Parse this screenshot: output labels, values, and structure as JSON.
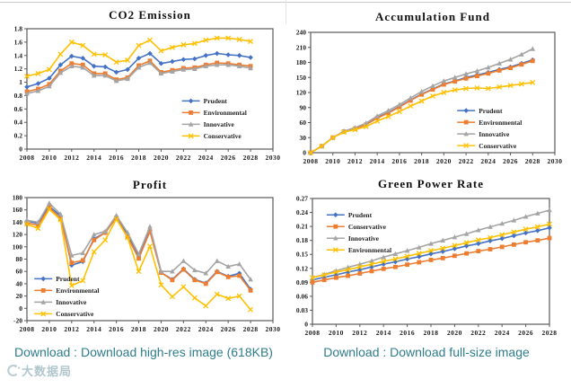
{
  "page": {
    "background": "#ffffff"
  },
  "chart_data": [
    {
      "type": "line",
      "title": "CO2 Emission",
      "x": [
        2008,
        2009,
        2010,
        2011,
        2012,
        2013,
        2014,
        2015,
        2016,
        2017,
        2018,
        2019,
        2020,
        2021,
        2022,
        2023,
        2024,
        2025,
        2026,
        2027,
        2028
      ],
      "x_axis_end": 2030,
      "x_tick_step": 2,
      "ylim": [
        0,
        1.8
      ],
      "ytick_step": 0.2,
      "grid": false,
      "legend_pos": {
        "x": 0.63,
        "y": 0.6
      },
      "series": [
        {
          "name": "Prudent",
          "color": "#4472C4",
          "marker": "diamond",
          "values": [
            0.93,
            0.98,
            1.06,
            1.26,
            1.39,
            1.36,
            1.24,
            1.23,
            1.15,
            1.19,
            1.36,
            1.43,
            1.28,
            1.31,
            1.34,
            1.35,
            1.4,
            1.43,
            1.41,
            1.4,
            1.37
          ]
        },
        {
          "name": "Environmental",
          "color": "#ED7D31",
          "marker": "square",
          "values": [
            0.86,
            0.9,
            0.97,
            1.17,
            1.28,
            1.26,
            1.13,
            1.13,
            1.04,
            1.07,
            1.25,
            1.32,
            1.15,
            1.18,
            1.21,
            1.22,
            1.26,
            1.29,
            1.28,
            1.26,
            1.24
          ]
        },
        {
          "name": "Innovative",
          "color": "#A5A5A5",
          "marker": "triangle",
          "values": [
            0.83,
            0.87,
            0.94,
            1.14,
            1.24,
            1.22,
            1.1,
            1.1,
            1.02,
            1.05,
            1.22,
            1.29,
            1.13,
            1.16,
            1.19,
            1.2,
            1.24,
            1.26,
            1.26,
            1.24,
            1.21
          ]
        },
        {
          "name": "Conservative",
          "color": "#FFC000",
          "marker": "x",
          "values": [
            1.09,
            1.13,
            1.19,
            1.42,
            1.6,
            1.55,
            1.42,
            1.41,
            1.3,
            1.33,
            1.55,
            1.63,
            1.47,
            1.52,
            1.56,
            1.58,
            1.63,
            1.66,
            1.66,
            1.64,
            1.61
          ]
        }
      ]
    },
    {
      "type": "line",
      "title": "Accumulation Fund",
      "x": [
        2008,
        2009,
        2010,
        2011,
        2012,
        2013,
        2014,
        2015,
        2016,
        2017,
        2018,
        2019,
        2020,
        2021,
        2022,
        2023,
        2024,
        2025,
        2026,
        2027,
        2028
      ],
      "x_axis_end": 2030,
      "x_tick_step": 2,
      "ylim": [
        0,
        240
      ],
      "ytick_step": 30,
      "grid": false,
      "legend_pos": {
        "x": 0.6,
        "y": 0.65
      },
      "series": [
        {
          "name": "Prudent",
          "color": "#4472C4",
          "marker": "diamond",
          "values": [
            0,
            13,
            30,
            42,
            48,
            57,
            70,
            80,
            92,
            105,
            117,
            127,
            137,
            143,
            150,
            155,
            160,
            166,
            171,
            178,
            185
          ]
        },
        {
          "name": "Environmental",
          "color": "#ED7D31",
          "marker": "square",
          "values": [
            0,
            13,
            30,
            42,
            48,
            56,
            69,
            79,
            91,
            104,
            116,
            126,
            136,
            142,
            148,
            153,
            158,
            164,
            169,
            176,
            183
          ]
        },
        {
          "name": "Innovative",
          "color": "#A5A5A5",
          "marker": "triangle",
          "values": [
            0,
            13,
            30,
            43,
            50,
            59,
            73,
            84,
            96,
            109,
            122,
            133,
            143,
            150,
            157,
            163,
            170,
            178,
            186,
            196,
            207
          ]
        },
        {
          "name": "Conservative",
          "color": "#FFC000",
          "marker": "x",
          "values": [
            0,
            13,
            30,
            41,
            46,
            52,
            63,
            72,
            82,
            93,
            103,
            113,
            120,
            125,
            128,
            129,
            128,
            131,
            134,
            137,
            140
          ]
        }
      ]
    },
    {
      "type": "line",
      "title": "Profit",
      "x": [
        2008,
        2009,
        2010,
        2011,
        2012,
        2013,
        2014,
        2015,
        2016,
        2017,
        2018,
        2019,
        2020,
        2021,
        2022,
        2023,
        2024,
        2025,
        2026,
        2027,
        2028
      ],
      "x_axis_end": 2030,
      "x_tick_step": 2,
      "ylim": [
        -20,
        180
      ],
      "ytick_step": 20,
      "grid": false,
      "legend_pos": {
        "x": 0.03,
        "y": 0.66
      },
      "series": [
        {
          "name": "Prudent",
          "color": "#4472C4",
          "marker": "diamond",
          "values": [
            142,
            138,
            166,
            150,
            70,
            76,
            113,
            123,
            149,
            120,
            84,
            127,
            58,
            47,
            64,
            47,
            41,
            60,
            52,
            57,
            31
          ]
        },
        {
          "name": "Environmental",
          "color": "#ED7D31",
          "marker": "square",
          "values": [
            139,
            135,
            164,
            146,
            74,
            78,
            111,
            123,
            147,
            116,
            81,
            125,
            58,
            46,
            63,
            46,
            40,
            59,
            51,
            53,
            29
          ]
        },
        {
          "name": "Innovative",
          "color": "#A5A5A5",
          "marker": "triangle",
          "values": [
            143,
            140,
            171,
            153,
            86,
            90,
            120,
            125,
            151,
            123,
            88,
            133,
            60,
            60,
            77,
            62,
            57,
            77,
            68,
            72,
            47
          ]
        },
        {
          "name": "Conservative",
          "color": "#FFC000",
          "marker": "x",
          "values": [
            137,
            130,
            161,
            144,
            37,
            45,
            92,
            111,
            145,
            115,
            60,
            101,
            38,
            19,
            35,
            17,
            4,
            23,
            16,
            20,
            -2
          ]
        }
      ]
    },
    {
      "type": "line",
      "title": "Green Power Rate",
      "x": [
        2008,
        2009,
        2010,
        2011,
        2012,
        2013,
        2014,
        2015,
        2016,
        2017,
        2018,
        2019,
        2020,
        2021,
        2022,
        2023,
        2024,
        2025,
        2026,
        2027,
        2028
      ],
      "x_axis_end": 2028,
      "x_tick_step": 2,
      "ylim": [
        0,
        0.27
      ],
      "ytick_step": 0.03,
      "grid": false,
      "legend_pos": {
        "x": 0.06,
        "y": 0.13
      },
      "series": [
        {
          "name": "Prudent",
          "color": "#4472C4",
          "marker": "diamond",
          "values": [
            0.095,
            0.101,
            0.106,
            0.112,
            0.117,
            0.123,
            0.129,
            0.134,
            0.14,
            0.145,
            0.151,
            0.156,
            0.162,
            0.168,
            0.173,
            0.179,
            0.184,
            0.19,
            0.196,
            0.201,
            0.207
          ]
        },
        {
          "name": "Conservative",
          "color": "#ED7D31",
          "marker": "square",
          "values": [
            0.09,
            0.095,
            0.1,
            0.104,
            0.109,
            0.114,
            0.119,
            0.123,
            0.128,
            0.133,
            0.138,
            0.142,
            0.147,
            0.152,
            0.157,
            0.161,
            0.166,
            0.171,
            0.176,
            0.18,
            0.185
          ]
        },
        {
          "name": "Innovative",
          "color": "#A5A5A5",
          "marker": "triangle",
          "values": [
            0.1,
            0.107,
            0.115,
            0.122,
            0.129,
            0.136,
            0.144,
            0.151,
            0.158,
            0.165,
            0.173,
            0.18,
            0.187,
            0.194,
            0.202,
            0.209,
            0.216,
            0.223,
            0.231,
            0.238,
            0.245
          ]
        },
        {
          "name": "Environmental",
          "color": "#FFC000",
          "marker": "x",
          "values": [
            0.1,
            0.106,
            0.112,
            0.117,
            0.123,
            0.129,
            0.135,
            0.14,
            0.146,
            0.152,
            0.158,
            0.163,
            0.169,
            0.175,
            0.181,
            0.186,
            0.192,
            0.198,
            0.204,
            0.209,
            0.215
          ]
        }
      ]
    }
  ],
  "footer": {
    "left_link": "Download : Download high-res image (618KB)",
    "right_link": "Download : Download full-size image",
    "watermark": "大数据局"
  }
}
